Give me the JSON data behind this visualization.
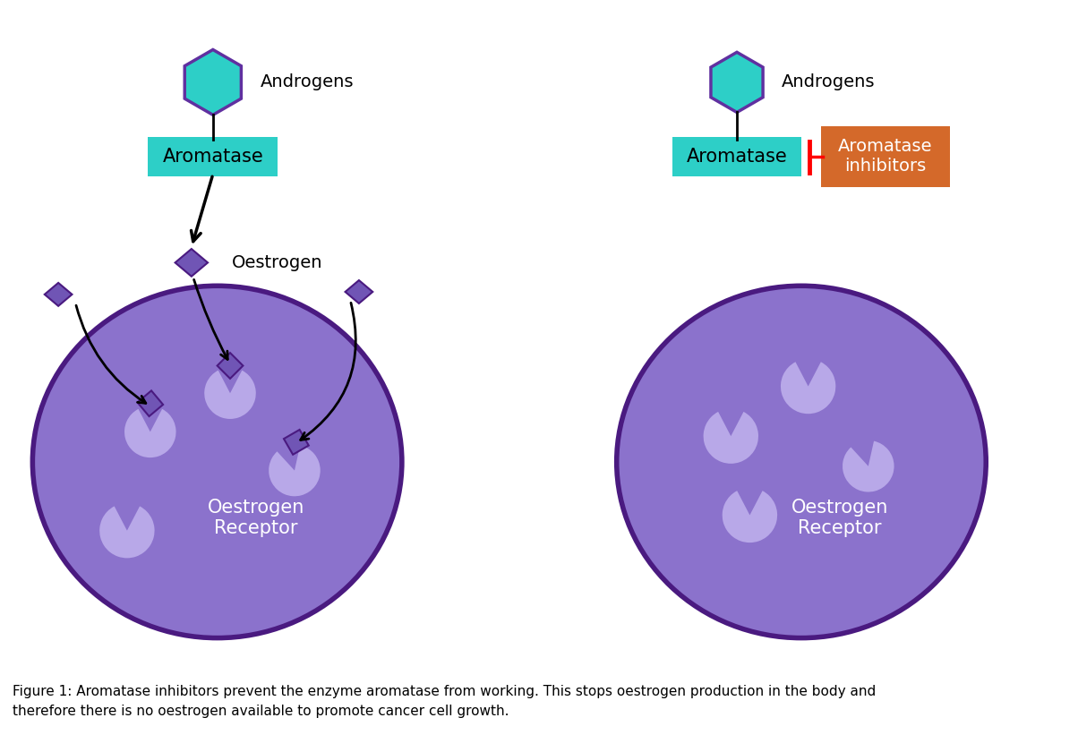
{
  "bg_color": "#ffffff",
  "cell_color": "#8b72cc",
  "cell_edge_color": "#4a1a80",
  "receptor_color": "#b8a8e8",
  "androgen_hex_color": "#2dcfc7",
  "androgen_hex_edge": "#6030a0",
  "aromatase_box_color": "#2dcfc7",
  "aromatase_text_color": "#000000",
  "inhibitor_box_color": "#d4692a",
  "inhibitor_text_color": "#ffffff",
  "oestrogen_diamond_color": "#7055b5",
  "oestrogen_diamond_edge": "#4a1a80",
  "arrow_color": "#000000",
  "inhibitor_arrow_color": "#cc0000",
  "label_androgens": "Androgens",
  "label_aromatase": "Aromatase",
  "label_oestrogen": "Oestrogen",
  "label_oestrogen_receptor": "Oestrogen\nReceptor",
  "label_inhibitors": "Aromatase\ninhibitors",
  "figure_caption": "Figure 1: Aromatase inhibitors prevent the enzyme aromatase from working. This stops oestrogen production in the body and\ntherefore there is no oestrogen available to promote cancer cell growth.",
  "cell_font_size": 15,
  "label_font_size": 14,
  "caption_font_size": 11
}
